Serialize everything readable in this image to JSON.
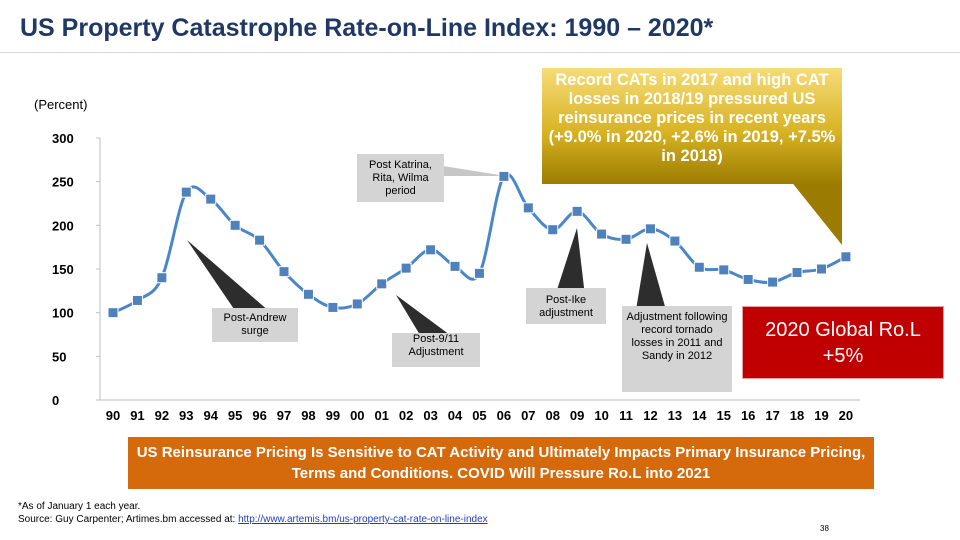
{
  "slide": {
    "title": "US Property Catastrophe Rate-on-Line Index: 1990 – 2020*",
    "unit_label": "(Percent)",
    "page_number": "38"
  },
  "callouts": {
    "katrina": "Post Katrina, Rita, Wilma period",
    "andrew": "Post-Andrew surge",
    "nine_eleven": "Post-9/11 Adjustment",
    "ike": "Post-Ike adjustment",
    "tornado": "Adjustment following record tornado losses in 2011 and Sandy in 2012",
    "record_cats": "Record CATs in 2017 and high CAT losses in 2018/19 pressured US reinsurance prices in recent years (+9.0% in 2020, +2.6% in 2019, +7.5% in 2018)",
    "global_rol_line1": "2020 Global Ro.L",
    "global_rol_line2": "+5%"
  },
  "banner": {
    "text": "US Reinsurance Pricing Is Sensitive to CAT Activity and Ultimately Impacts Primary Insurance Pricing, Terms and Conditions. COVID Will Pressure Ro.L into 2021"
  },
  "footer": {
    "note": "*As of January 1 each year.",
    "source_prefix": "Source: Guy Carpenter; Artimes.bm accessed at: ",
    "source_link": "http://www.artemis.bm/us-property-cat-rate-on-line-index"
  },
  "colors": {
    "line": "#4a86c8",
    "marker_fill": "#4f81bd",
    "marker_stroke": "#ffffff",
    "gold_top": "#f6dc78",
    "gold_bottom": "#9c7c00",
    "red": "#c00000",
    "orange": "#d46a0c",
    "title": "#1f3864"
  },
  "chart_data": {
    "type": "line",
    "title": "US Property Catastrophe Rate-on-Line Index: 1990 – 2020*",
    "ylabel": "(Percent)",
    "xlabel": "",
    "categories": [
      "90",
      "91",
      "92",
      "93",
      "94",
      "95",
      "96",
      "97",
      "98",
      "99",
      "00",
      "01",
      "02",
      "03",
      "04",
      "05",
      "06",
      "07",
      "08",
      "09",
      "10",
      "11",
      "12",
      "13",
      "14",
      "15",
      "16",
      "17",
      "18",
      "19",
      "20"
    ],
    "series": [
      {
        "name": "US Property Catastrophe ROL Index",
        "values": [
          100,
          114,
          140,
          238,
          230,
          200,
          183,
          147,
          121,
          106,
          110,
          133,
          151,
          172,
          153,
          145,
          256,
          220,
          195,
          216,
          190,
          184,
          196,
          182,
          152,
          149,
          138,
          135,
          146,
          150,
          164
        ]
      }
    ],
    "ylim": [
      0,
      300
    ],
    "yticks": [
      "0",
      "50",
      "100",
      "150",
      "200",
      "250",
      "300"
    ],
    "grid": false,
    "legend": "none"
  }
}
